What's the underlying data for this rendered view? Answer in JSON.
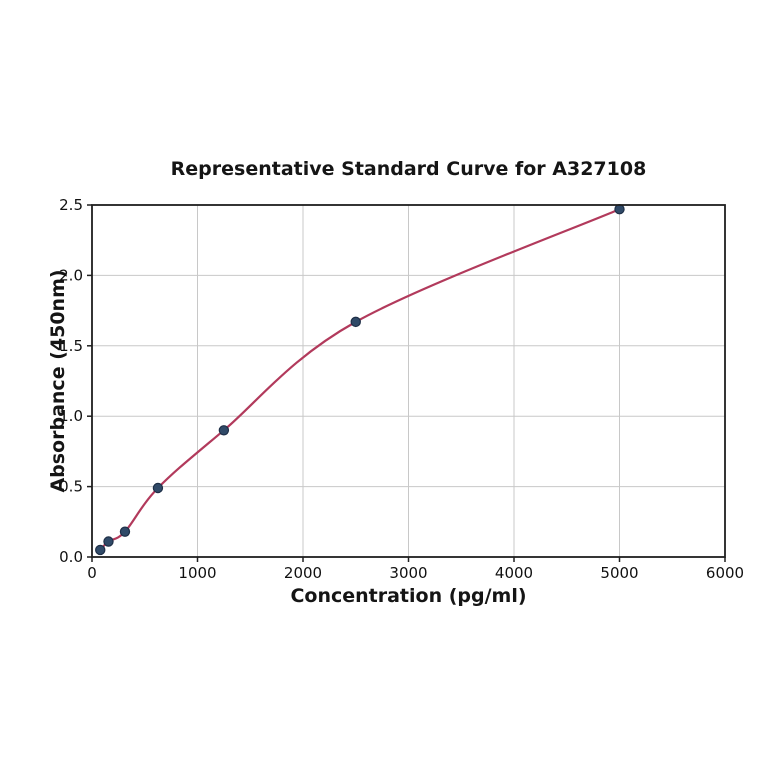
{
  "title": "Representative Standard Curve for A327108",
  "chart_data": {
    "type": "scatter",
    "subtype": "standard-curve-with-fit-line",
    "title": "Representative Standard Curve for A327108",
    "xlabel": "Concentration (pg/ml)",
    "ylabel": "Absorbance (450nm)",
    "xlim": [
      0,
      6000
    ],
    "ylim": [
      0,
      2.5
    ],
    "x_ticks": [
      0,
      1000,
      2000,
      3000,
      4000,
      5000,
      6000
    ],
    "y_ticks": [
      0.0,
      0.5,
      1.0,
      1.5,
      2.0,
      2.5
    ],
    "grid": true,
    "legend": "none",
    "series": [
      {
        "name": "standards",
        "x": [
          78.1,
          156.3,
          312.5,
          625,
          1250,
          2500,
          5000
        ],
        "y": [
          0.05,
          0.11,
          0.18,
          0.49,
          0.9,
          1.67,
          2.47
        ]
      }
    ],
    "colors": {
      "curve": "#b23a5c",
      "marker_fill": "#304a68",
      "marker_edge": "#1e2f47",
      "grid": "#c8c8c8",
      "spine": "#1f1f1f",
      "tick": "#1f1f1f",
      "text": "#111111",
      "background": "#ffffff"
    }
  }
}
